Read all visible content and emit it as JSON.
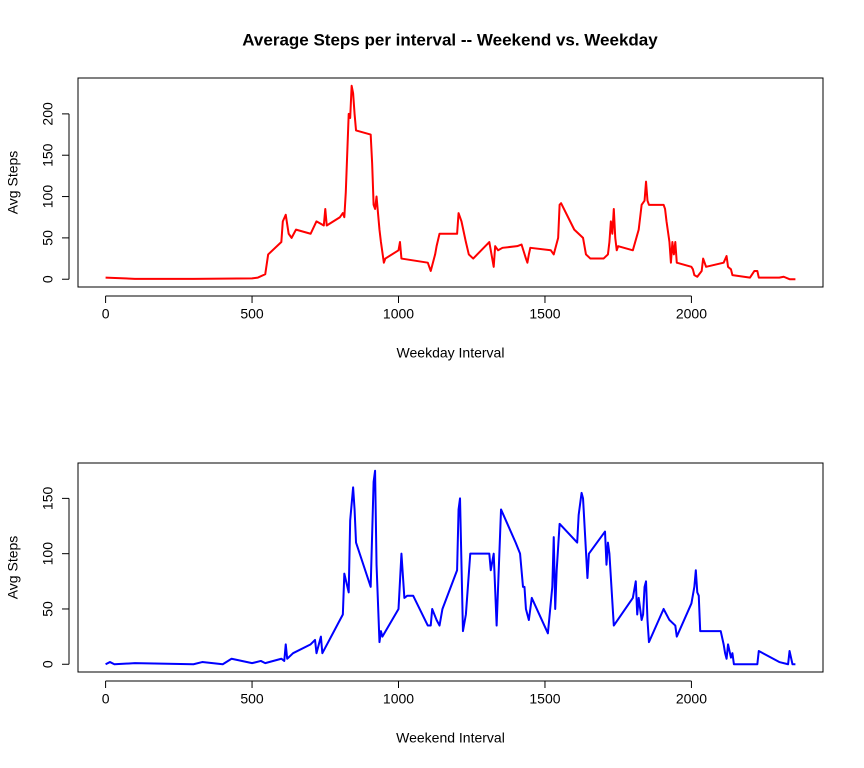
{
  "chart_data": [
    {
      "type": "line",
      "title": "Average Steps per interval -- Weekend vs. Weekday",
      "xlabel": "Weekday Interval",
      "ylabel": "Avg Steps",
      "color": "#ff0000",
      "x": [
        0,
        100,
        300,
        500,
        520,
        545,
        555,
        600,
        605,
        615,
        625,
        635,
        650,
        700,
        720,
        745,
        750,
        755,
        800,
        810,
        815,
        820,
        830,
        835,
        840,
        845,
        850,
        855,
        905,
        910,
        915,
        920,
        925,
        935,
        940,
        950,
        955,
        1000,
        1005,
        1010,
        1100,
        1105,
        1110,
        1125,
        1130,
        1140,
        1200,
        1205,
        1215,
        1230,
        1240,
        1255,
        1310,
        1320,
        1325,
        1330,
        1340,
        1355,
        1405,
        1420,
        1435,
        1440,
        1445,
        1450,
        1520,
        1530,
        1545,
        1550,
        1555,
        1600,
        1630,
        1640,
        1655,
        1700,
        1715,
        1720,
        1725,
        1730,
        1735,
        1740,
        1745,
        1750,
        1800,
        1820,
        1830,
        1840,
        1845,
        1850,
        1855,
        1905,
        1910,
        1915,
        1925,
        1930,
        1935,
        1940,
        1945,
        1950,
        2000,
        2005,
        2010,
        2020,
        2035,
        2040,
        2050,
        2110,
        2120,
        2125,
        2135,
        2140,
        2200,
        2215,
        2225,
        2230,
        2300,
        2315,
        2335,
        2355
      ],
      "values": [
        2,
        0.5,
        0.5,
        1,
        2,
        6,
        30,
        45,
        70,
        78,
        55,
        50,
        60,
        55,
        70,
        65,
        85,
        65,
        75,
        80,
        75,
        105,
        200,
        195,
        234,
        225,
        200,
        180,
        175,
        140,
        90,
        85,
        100,
        60,
        45,
        20,
        25,
        35,
        45,
        25,
        20,
        15,
        10,
        30,
        40,
        55,
        55,
        80,
        70,
        45,
        30,
        25,
        45,
        25,
        15,
        40,
        35,
        38,
        40,
        42,
        25,
        20,
        30,
        38,
        35,
        30,
        50,
        90,
        92,
        60,
        50,
        30,
        25,
        25,
        30,
        45,
        70,
        55,
        85,
        50,
        35,
        40,
        35,
        60,
        90,
        95,
        118,
        95,
        90,
        90,
        85,
        70,
        45,
        20,
        45,
        30,
        45,
        20,
        15,
        12,
        5,
        3,
        10,
        25,
        15,
        20,
        28,
        15,
        12,
        5,
        2,
        10,
        10,
        2,
        2,
        3,
        0,
        0
      ],
      "xlim": [
        -94.2,
        2449.2
      ],
      "ylim": [
        -9.4,
        243.4
      ],
      "xticks": [
        0,
        500,
        1000,
        1500,
        2000
      ],
      "yticks": [
        0,
        50,
        100,
        150,
        200
      ]
    },
    {
      "type": "line",
      "xlabel": "Weekend Interval",
      "ylabel": "Avg Steps",
      "color": "#0000ff",
      "x": [
        0,
        15,
        30,
        100,
        300,
        330,
        400,
        430,
        500,
        530,
        545,
        600,
        610,
        615,
        620,
        640,
        700,
        715,
        720,
        735,
        740,
        800,
        810,
        815,
        830,
        835,
        845,
        850,
        855,
        905,
        915,
        920,
        925,
        935,
        940,
        945,
        1000,
        1010,
        1020,
        1030,
        1050,
        1100,
        1110,
        1115,
        1130,
        1140,
        1150,
        1200,
        1205,
        1210,
        1220,
        1230,
        1245,
        1310,
        1315,
        1325,
        1335,
        1350,
        1400,
        1415,
        1425,
        1430,
        1435,
        1445,
        1455,
        1510,
        1525,
        1530,
        1535,
        1540,
        1550,
        1610,
        1615,
        1625,
        1630,
        1645,
        1650,
        1705,
        1710,
        1715,
        1720,
        1735,
        1800,
        1810,
        1815,
        1820,
        1830,
        1835,
        1840,
        1845,
        1850,
        1855,
        1905,
        1925,
        1945,
        1950,
        2000,
        2010,
        2015,
        2020,
        2025,
        2030,
        2100,
        2110,
        2115,
        2120,
        2125,
        2135,
        2140,
        2145,
        2200,
        2225,
        2230,
        2300,
        2330,
        2335,
        2345,
        2355
      ],
      "values": [
        0,
        2,
        0,
        1,
        0,
        2,
        0,
        5,
        1,
        3,
        1,
        5,
        3,
        18,
        5,
        10,
        18,
        22,
        10,
        25,
        10,
        40,
        45,
        82,
        65,
        130,
        160,
        140,
        110,
        70,
        165,
        175,
        90,
        20,
        30,
        25,
        50,
        100,
        60,
        62,
        62,
        35,
        35,
        50,
        40,
        35,
        50,
        85,
        140,
        150,
        30,
        45,
        100,
        100,
        85,
        100,
        35,
        140,
        110,
        100,
        70,
        70,
        50,
        40,
        60,
        28,
        70,
        115,
        50,
        85,
        127,
        110,
        135,
        155,
        150,
        78,
        100,
        120,
        90,
        110,
        100,
        35,
        60,
        75,
        45,
        60,
        40,
        45,
        70,
        75,
        40,
        20,
        50,
        40,
        35,
        25,
        55,
        70,
        85,
        65,
        62,
        30,
        30,
        18,
        10,
        5,
        18,
        6,
        10,
        0,
        0,
        0,
        12,
        2,
        0,
        12,
        0,
        0
      ],
      "xlim": [
        -94.2,
        2449.2
      ],
      "ylim": [
        -7,
        182
      ],
      "xticks": [
        0,
        500,
        1000,
        1500,
        2000
      ],
      "yticks": [
        0,
        50,
        100,
        150
      ]
    }
  ]
}
